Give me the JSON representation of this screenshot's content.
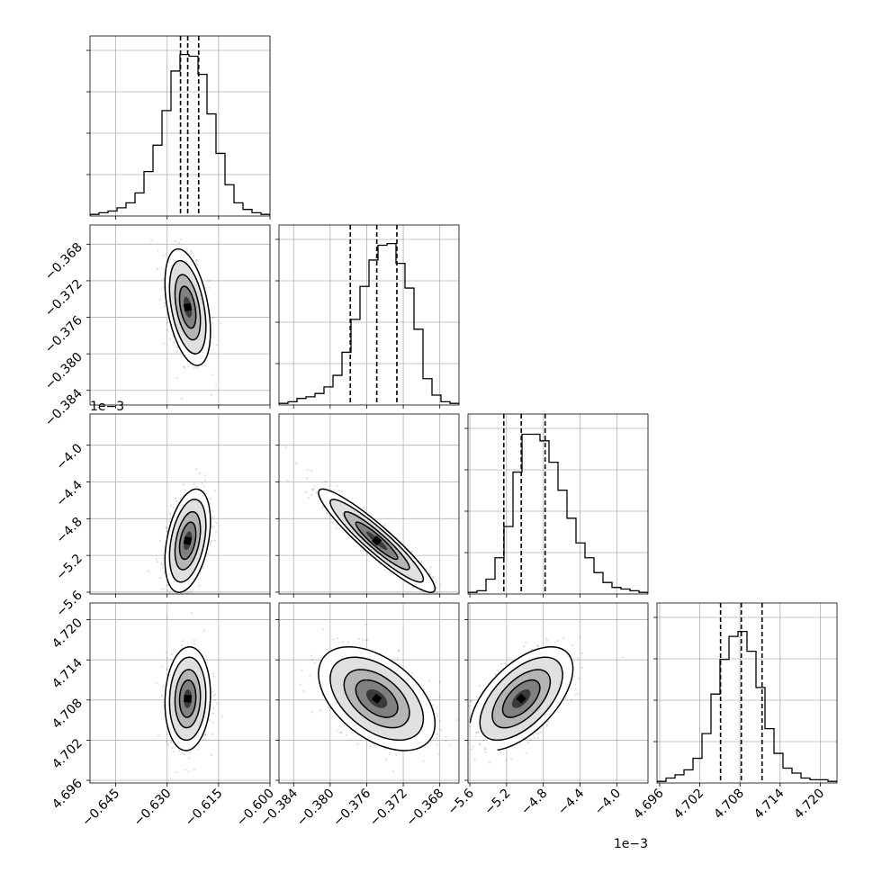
{
  "chart_data": {
    "type": "corner",
    "title": "",
    "parameters": [
      {
        "range": [
          -0.6525,
          -0.6
        ],
        "ticks": [
          -0.645,
          -0.63,
          -0.615,
          -0.6
        ],
        "tick_labels": [
          "−0.645",
          "−0.630",
          "−0.615",
          "−0.600"
        ],
        "median": -0.624,
        "q16": -0.6261,
        "q84": -0.6208,
        "offset_label": ""
      },
      {
        "range": [
          -0.3856,
          -0.3659
        ],
        "ticks": [
          -0.384,
          -0.38,
          -0.376,
          -0.372,
          -0.368
        ],
        "tick_labels": [
          "−0.384",
          "−0.380",
          "−0.376",
          "−0.372",
          "−0.368"
        ],
        "median": -0.3749,
        "q16": -0.3778,
        "q84": -0.3727,
        "offset_label": ""
      },
      {
        "range": [
          -5.62,
          -3.66
        ],
        "ticks": [
          -5.6,
          -5.2,
          -4.8,
          -4.4,
          -4.0
        ],
        "tick_labels": [
          "−5.6",
          "−5.2",
          "−4.8",
          "−4.4",
          "−4.0"
        ],
        "median": -5.04,
        "q16": -5.23,
        "q84": -4.78,
        "offset_label": "1e−3"
      },
      {
        "range": [
          4.6956,
          4.7225
        ],
        "ticks": [
          4.696,
          4.702,
          4.708,
          4.714,
          4.72
        ],
        "tick_labels": [
          "4.696",
          "4.702",
          "4.708",
          "4.714",
          "4.720"
        ],
        "median": 4.7082,
        "q16": 4.7051,
        "q84": 4.7113,
        "offset_label": ""
      }
    ],
    "histograms": [
      [
        1,
        2,
        3,
        5,
        8,
        14,
        27,
        43,
        64,
        88,
        98,
        97,
        86,
        62,
        38,
        19,
        8,
        4,
        2,
        1
      ],
      [
        1,
        2,
        4,
        5,
        7,
        11,
        18,
        32,
        52,
        72,
        88,
        97,
        98,
        86,
        71,
        46,
        16,
        6,
        2,
        1
      ],
      [
        1,
        2,
        9,
        22,
        41,
        74,
        97,
        97,
        93,
        80,
        63,
        46,
        31,
        22,
        13,
        7,
        4,
        3,
        2,
        1
      ],
      [
        1,
        3,
        5,
        8,
        15,
        30,
        54,
        75,
        89,
        92,
        80,
        58,
        33,
        18,
        9,
        6,
        3,
        2,
        2,
        1
      ]
    ],
    "grid": true,
    "legend": "none"
  }
}
